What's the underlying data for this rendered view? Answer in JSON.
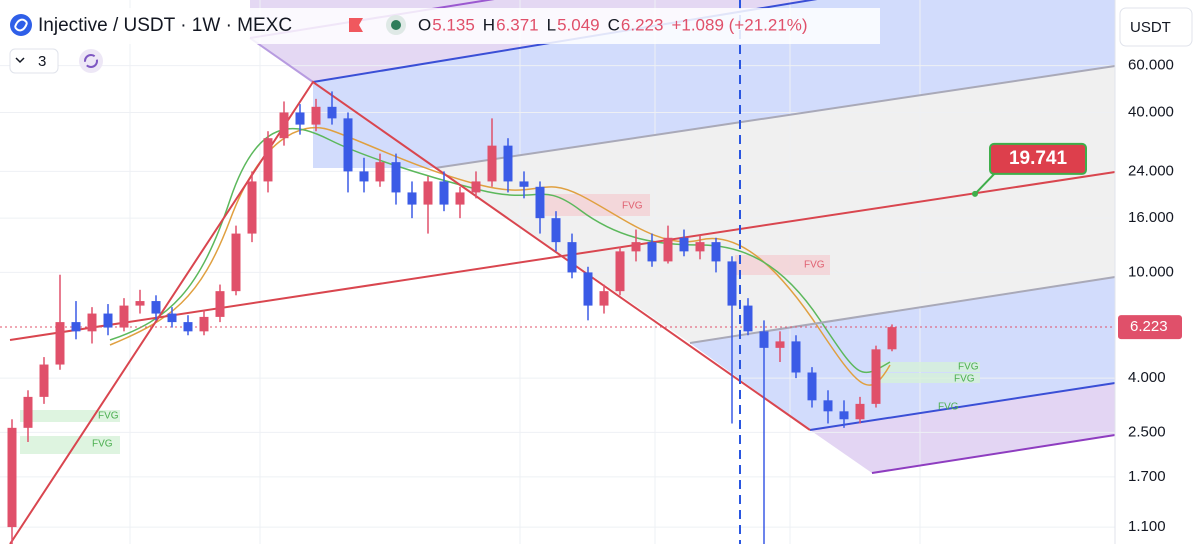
{
  "header": {
    "title": "Injective / USDT · 1W · MEXC",
    "ohlc_labels": [
      "O",
      "H",
      "L",
      "C"
    ],
    "change": "+1.089 (+21.21%)",
    "interval_count": "3",
    "currency": "USDT"
  },
  "chart_data": {
    "type": "candlestick",
    "log_scale": true,
    "up_color": "#e0506a",
    "down_color": "#3b5be6",
    "ylim": [
      0.95,
      106
    ],
    "yticks": [
      {
        "value": 60,
        "label": "60.000"
      },
      {
        "value": 40,
        "label": "40.000"
      },
      {
        "value": 24,
        "label": "24.000"
      },
      {
        "value": 16,
        "label": "16.000"
      },
      {
        "value": 10,
        "label": "10.000"
      },
      {
        "value": 4,
        "label": "4.000"
      },
      {
        "value": 2.5,
        "label": "2.500"
      },
      {
        "value": 1.7,
        "label": "1.700"
      },
      {
        "value": 1.1,
        "label": "1.100"
      }
    ],
    "target": 19.741,
    "fvg_labels": [
      "FVG",
      "FVG",
      "FVG",
      "FVG",
      "FVG",
      "FVG",
      "FVG"
    ],
    "candles": [
      [
        1.1,
        2.8,
        0.95,
        2.6
      ],
      [
        2.6,
        3.6,
        2.3,
        3.4
      ],
      [
        3.4,
        4.8,
        3.2,
        4.5
      ],
      [
        4.5,
        9.8,
        4.3,
        6.5
      ],
      [
        6.5,
        7.8,
        5.6,
        6.0
      ],
      [
        6.0,
        7.4,
        5.4,
        7.0
      ],
      [
        7.0,
        7.6,
        5.8,
        6.2
      ],
      [
        6.2,
        8.0,
        6.0,
        7.5
      ],
      [
        7.5,
        8.6,
        7.0,
        7.8
      ],
      [
        7.8,
        8.2,
        6.6,
        7.0
      ],
      [
        7.0,
        7.4,
        6.2,
        6.5
      ],
      [
        6.5,
        6.9,
        5.8,
        6.0
      ],
      [
        6.0,
        7.2,
        5.8,
        6.8
      ],
      [
        6.8,
        9.0,
        6.5,
        8.5
      ],
      [
        8.5,
        15,
        8.2,
        14
      ],
      [
        14,
        24,
        13,
        22
      ],
      [
        22,
        34,
        20,
        32
      ],
      [
        32,
        44,
        30,
        40
      ],
      [
        40,
        43,
        33,
        36
      ],
      [
        36,
        45,
        34,
        42
      ],
      [
        42,
        48,
        36,
        38
      ],
      [
        38,
        40,
        20,
        24
      ],
      [
        24,
        27,
        20,
        22
      ],
      [
        22,
        28,
        21,
        26
      ],
      [
        26,
        28,
        18,
        20
      ],
      [
        20,
        22,
        16,
        18
      ],
      [
        18,
        23,
        14,
        22
      ],
      [
        22,
        24,
        17,
        18
      ],
      [
        18,
        21,
        16,
        20
      ],
      [
        20,
        24,
        19,
        22
      ],
      [
        22,
        38,
        21,
        30
      ],
      [
        30,
        32,
        20,
        22
      ],
      [
        22,
        24,
        19,
        21
      ],
      [
        21,
        22,
        14,
        16
      ],
      [
        16,
        17,
        12,
        13
      ],
      [
        13,
        14,
        9.5,
        10
      ],
      [
        10,
        10.5,
        6.6,
        7.5
      ],
      [
        7.5,
        9.0,
        7.0,
        8.5
      ],
      [
        8.5,
        12.5,
        8.2,
        12
      ],
      [
        12,
        14.5,
        11,
        13
      ],
      [
        13,
        14,
        10.5,
        11
      ],
      [
        11,
        15,
        10.8,
        13.5
      ],
      [
        13.5,
        14.5,
        11.5,
        12
      ],
      [
        12,
        13.8,
        11.2,
        13
      ],
      [
        13,
        13.5,
        10,
        11
      ],
      [
        11,
        11.5,
        2.7,
        7.5
      ],
      [
        7.5,
        8.0,
        5.8,
        6.0
      ],
      [
        6.0,
        6.6,
        0.9,
        5.2
      ],
      [
        5.2,
        6.0,
        4.6,
        5.5
      ],
      [
        5.5,
        5.8,
        4.0,
        4.2
      ],
      [
        4.2,
        4.4,
        3.1,
        3.3
      ],
      [
        3.3,
        3.6,
        2.7,
        3.0
      ],
      [
        3.0,
        3.3,
        2.6,
        2.8
      ],
      [
        2.8,
        3.4,
        2.7,
        3.2
      ],
      [
        3.2,
        5.3,
        3.1,
        5.134
      ],
      [
        5.135,
        6.371,
        5.049,
        6.223
      ]
    ]
  }
}
